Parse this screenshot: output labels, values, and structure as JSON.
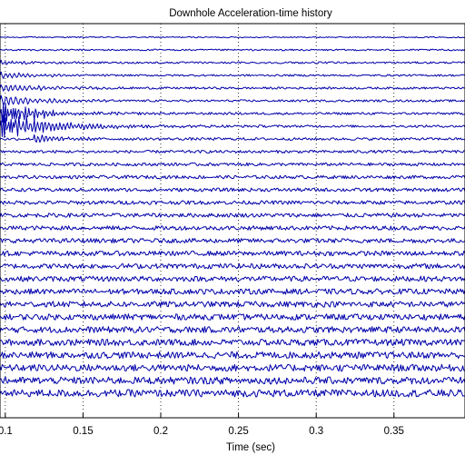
{
  "chart_data": {
    "type": "line",
    "title": "Downhole Acceleration-time history",
    "xlabel": "Time (sec)",
    "ylabel": "",
    "xlim": [
      0.0966,
      0.3957
    ],
    "x_ticks": [
      0.1,
      0.15,
      0.2,
      0.25,
      0.3,
      0.35
    ],
    "x_tick_labels": [
      "0.1",
      "0.15",
      "0.2",
      "0.25",
      "0.3",
      "0.35"
    ],
    "grid": "x-vertical-dotted",
    "trace_count": 29,
    "series_color": "#0000aa",
    "series": [
      {
        "trace": 1,
        "event": [],
        "noise": 0.25
      },
      {
        "trace": 2,
        "event": [],
        "noise": 0.35
      },
      {
        "trace": 3,
        "event": [
          {
            "t0": 0.0966,
            "amp": 0.8,
            "decay": 0.02,
            "freq": 40
          }
        ],
        "noise": 0.4
      },
      {
        "trace": 4,
        "event": [
          {
            "t0": 0.0966,
            "amp": 1.2,
            "decay": 0.025,
            "freq": 35
          }
        ],
        "noise": 0.4
      },
      {
        "trace": 5,
        "event": [
          {
            "t0": 0.0966,
            "amp": 1.6,
            "decay": 0.03,
            "freq": 33
          }
        ],
        "noise": 0.45
      },
      {
        "trace": 6,
        "event": [
          {
            "t0": 0.0966,
            "amp": 2.2,
            "decay": 0.028,
            "freq": 32
          }
        ],
        "noise": 0.45
      },
      {
        "trace": 7,
        "event": [
          {
            "t0": 0.0966,
            "amp": 5.5,
            "decay": 0.012,
            "freq": 62
          },
          {
            "t0": 0.108,
            "amp": 2.2,
            "decay": 0.03,
            "freq": 45
          }
        ],
        "noise": 0.5
      },
      {
        "trace": 8,
        "event": [
          {
            "t0": 0.0966,
            "amp": 6.5,
            "decay": 0.01,
            "freq": 60
          },
          {
            "t0": 0.106,
            "amp": 3.0,
            "decay": 0.04,
            "freq": 42
          }
        ],
        "noise": 0.5
      },
      {
        "trace": 9,
        "event": [
          {
            "t0": 0.118,
            "amp": 1.8,
            "decay": 0.018,
            "freq": 40
          }
        ],
        "noise": 0.55
      },
      {
        "trace": 10,
        "event": [],
        "noise": 0.6
      },
      {
        "trace": 11,
        "event": [],
        "noise": 0.65
      },
      {
        "trace": 12,
        "event": [],
        "noise": 0.7
      },
      {
        "trace": 13,
        "event": [],
        "noise": 0.75
      },
      {
        "trace": 14,
        "event": [],
        "noise": 0.8
      },
      {
        "trace": 15,
        "event": [],
        "noise": 0.85
      },
      {
        "trace": 16,
        "event": [],
        "noise": 0.9
      },
      {
        "trace": 17,
        "event": [],
        "noise": 0.95
      },
      {
        "trace": 18,
        "event": [],
        "noise": 1.0
      },
      {
        "trace": 19,
        "event": [],
        "noise": 1.05
      },
      {
        "trace": 20,
        "event": [],
        "noise": 1.1
      },
      {
        "trace": 21,
        "event": [],
        "noise": 1.15
      },
      {
        "trace": 22,
        "event": [],
        "noise": 1.2
      },
      {
        "trace": 23,
        "event": [],
        "noise": 1.25
      },
      {
        "trace": 24,
        "event": [],
        "noise": 1.3
      },
      {
        "trace": 25,
        "event": [],
        "noise": 1.35
      },
      {
        "trace": 26,
        "event": [],
        "noise": 1.4
      },
      {
        "trace": 27,
        "event": [],
        "noise": 1.45
      },
      {
        "trace": 28,
        "event": [],
        "noise": 1.5
      },
      {
        "trace": 29,
        "event": [],
        "noise": 1.55
      }
    ]
  }
}
